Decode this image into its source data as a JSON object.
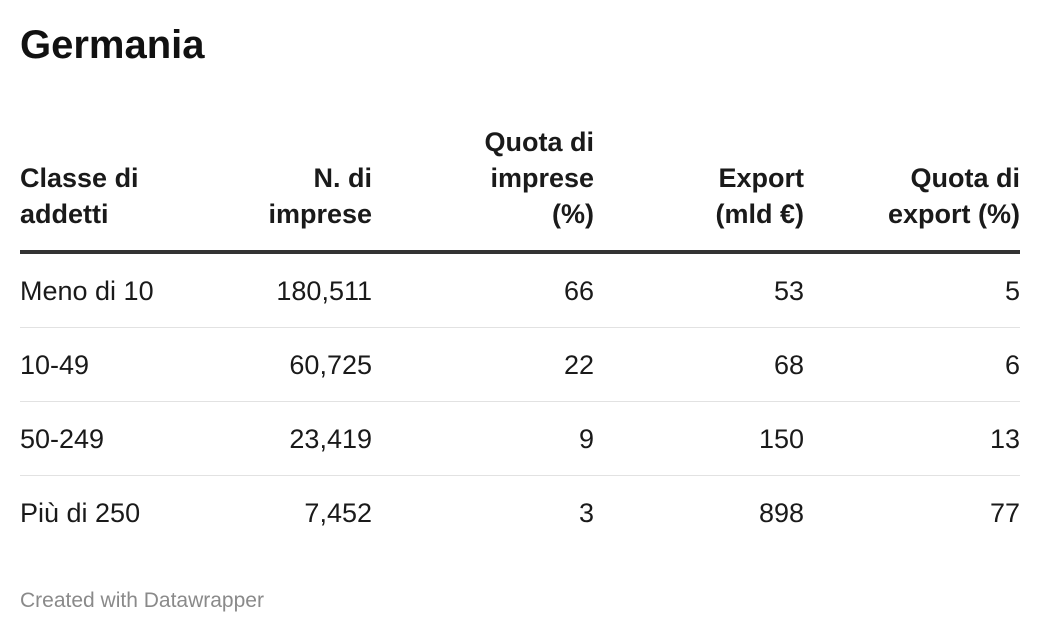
{
  "title": "Germania",
  "footer": "Created with Datawrapper",
  "chart_data": {
    "type": "table",
    "title": "Germania",
    "columns": [
      {
        "lines": [
          "Classe di",
          "addetti"
        ],
        "align": "left"
      },
      {
        "lines": [
          "N. di",
          "imprese"
        ],
        "align": "right"
      },
      {
        "lines": [
          "Quota di",
          "imprese",
          "(%)"
        ],
        "align": "right"
      },
      {
        "lines": [
          "Export",
          "(mld €)"
        ],
        "align": "right"
      },
      {
        "lines": [
          "Quota di",
          "export (%)"
        ],
        "align": "right"
      }
    ],
    "rows": [
      [
        "Meno di 10",
        "180,511",
        "66",
        "53",
        "5"
      ],
      [
        "10-49",
        "60,725",
        "22",
        "68",
        "6"
      ],
      [
        "50-249",
        "23,419",
        "9",
        "150",
        "13"
      ],
      [
        "Più di 250",
        "7,452",
        "3",
        "898",
        "77"
      ]
    ]
  }
}
